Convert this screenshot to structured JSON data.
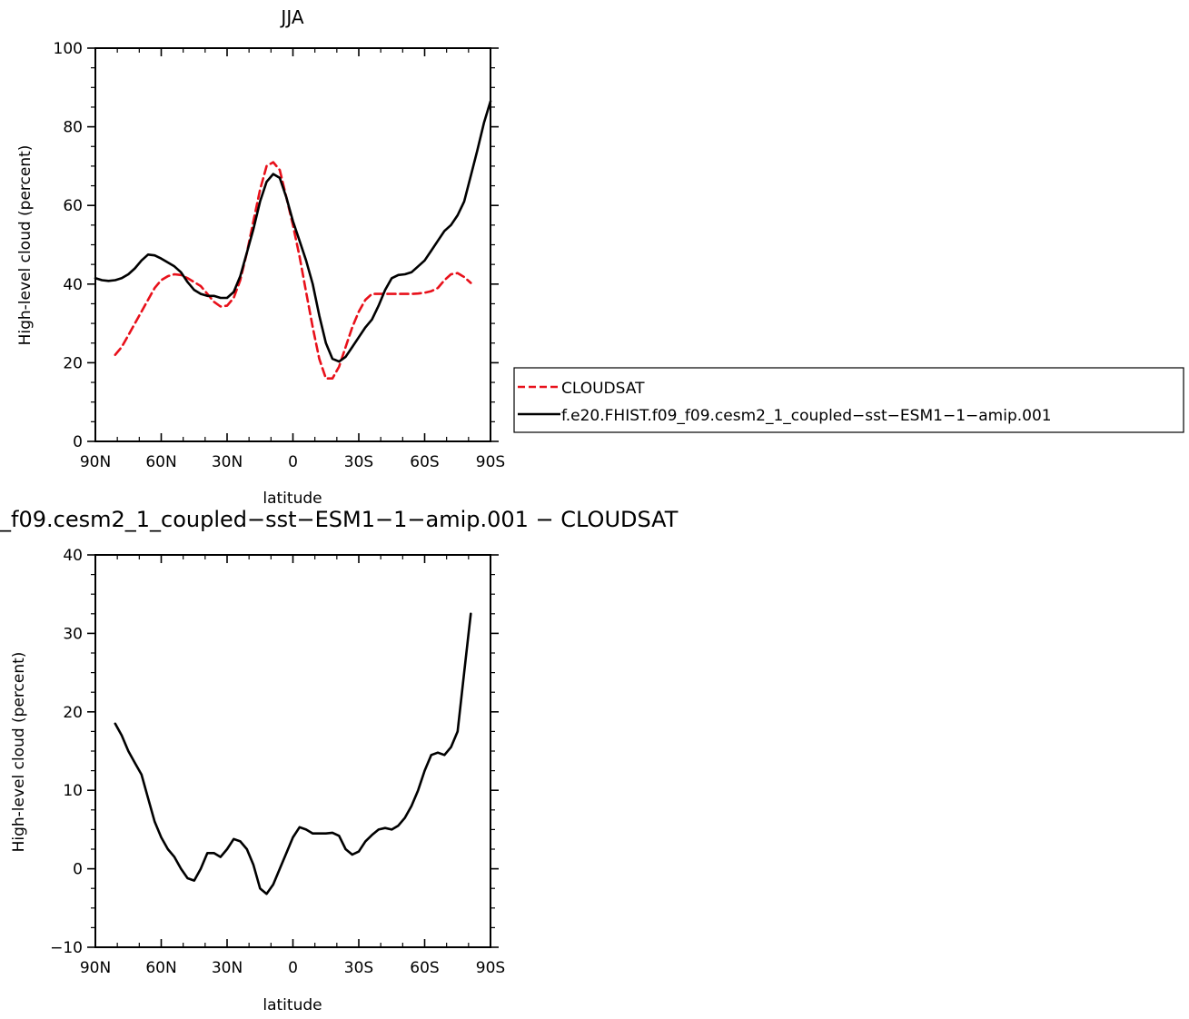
{
  "top_title": "JJA",
  "bottom_title": "_f09.cesm2_1_coupled−sst−ESM1−1−amip.001  −  CLOUDSAT",
  "legend": {
    "cloudsat_label": "CLOUDSAT",
    "model_label": "f.e20.FHIST.f09_f09.cesm2_1_coupled−sst−ESM1−1−amip.001"
  },
  "colors": {
    "cloudsat": "#e8101a",
    "model": "#000000"
  },
  "chart_data": [
    {
      "type": "line",
      "title": "JJA",
      "xlabel": "latitude",
      "ylabel": "High-level cloud (percent)",
      "xlim": [
        90,
        -90
      ],
      "ylim": [
        0,
        100
      ],
      "x_tick_values": [
        90,
        60,
        30,
        0,
        -30,
        -60,
        -90
      ],
      "x_tick_labels": [
        "90N",
        "60N",
        "30N",
        "0",
        "30S",
        "60S",
        "90S"
      ],
      "y_tick_values": [
        0,
        20,
        40,
        60,
        80,
        100
      ],
      "y_tick_labels": [
        "0",
        "20",
        "40",
        "60",
        "80",
        "100"
      ],
      "legend_position": "right",
      "series": [
        {
          "name": "CLOUDSAT",
          "style": "dashed",
          "color": "#e8101a",
          "x": [
            81,
            78,
            75,
            72,
            69,
            66,
            63,
            60,
            57,
            54,
            51,
            48,
            45,
            42,
            39,
            36,
            33,
            30,
            27,
            24,
            21,
            18,
            15,
            12,
            9,
            6,
            3,
            0,
            -3,
            -6,
            -9,
            -12,
            -15,
            -18,
            -21,
            -24,
            -27,
            -30,
            -33,
            -36,
            -39,
            -42,
            -45,
            -48,
            -51,
            -54,
            -57,
            -60,
            -63,
            -66,
            -69,
            -72,
            -75,
            -78,
            -81
          ],
          "values": [
            22,
            24,
            27,
            30,
            33,
            36,
            39,
            41,
            42,
            42.5,
            42.3,
            41.5,
            40.5,
            39.5,
            37.5,
            35.5,
            34.3,
            34.5,
            36.5,
            41,
            48,
            56,
            64,
            70,
            71,
            69,
            62,
            55,
            47,
            38,
            29,
            21,
            16,
            16,
            19,
            24,
            29,
            33,
            36,
            37.5,
            37.5,
            37.5,
            37.5,
            37.5,
            37.5,
            37.5,
            37.6,
            37.8,
            38.2,
            39,
            41,
            42.5,
            42.8,
            41.8,
            40.3
          ]
        },
        {
          "name": "f.e20.FHIST.f09_f09.cesm2_1_coupled−sst−ESM1−1−amip.001",
          "style": "solid",
          "color": "#000000",
          "x": [
            90,
            87,
            84,
            81,
            78,
            75,
            72,
            69,
            66,
            63,
            60,
            57,
            54,
            51,
            48,
            45,
            42,
            39,
            36,
            33,
            30,
            27,
            24,
            21,
            18,
            15,
            12,
            9,
            6,
            3,
            0,
            -3,
            -6,
            -9,
            -12,
            -15,
            -18,
            -21,
            -24,
            -27,
            -30,
            -33,
            -36,
            -39,
            -42,
            -45,
            -48,
            -51,
            -54,
            -57,
            -60,
            -63,
            -66,
            -69,
            -72,
            -75,
            -78,
            -81,
            -84,
            -87,
            -90
          ],
          "values": [
            41.5,
            41,
            40.8,
            41,
            41.5,
            42.5,
            44,
            46,
            47.5,
            47.3,
            46.5,
            45.5,
            44.5,
            43,
            40.5,
            38.5,
            37.5,
            37,
            37,
            36.5,
            36.5,
            38,
            42,
            48,
            54,
            61,
            66,
            68,
            67,
            62,
            56,
            51,
            46,
            40,
            32,
            25,
            21,
            20.3,
            21.5,
            24,
            26.5,
            29,
            31,
            34.5,
            38.5,
            41.5,
            42.3,
            42.5,
            43,
            44.5,
            46,
            48.5,
            51,
            53.5,
            55,
            57.5,
            61,
            67.5,
            74,
            81,
            86.5
          ]
        }
      ]
    },
    {
      "type": "line",
      "title": "_f09.cesm2_1_coupled−sst−ESM1−1−amip.001  −  CLOUDSAT",
      "xlabel": "latitude",
      "ylabel": "High-level cloud (percent)",
      "xlim": [
        90,
        -90
      ],
      "ylim": [
        -10,
        40
      ],
      "x_tick_values": [
        90,
        60,
        30,
        0,
        -30,
        -60,
        -90
      ],
      "x_tick_labels": [
        "90N",
        "60N",
        "30N",
        "0",
        "30S",
        "60S",
        "90S"
      ],
      "y_tick_values": [
        -10,
        0,
        10,
        20,
        30,
        40
      ],
      "y_tick_labels": [
        "−10",
        "0",
        "10",
        "20",
        "30",
        "40"
      ],
      "series": [
        {
          "style": "solid",
          "color": "#000000",
          "x": [
            81,
            78,
            75,
            72,
            69,
            66,
            63,
            60,
            57,
            54,
            51,
            48,
            45,
            42,
            39,
            36,
            33,
            30,
            27,
            24,
            21,
            18,
            15,
            12,
            9,
            6,
            3,
            0,
            -3,
            -6,
            -9,
            -12,
            -15,
            -18,
            -21,
            -24,
            -27,
            -30,
            -33,
            -36,
            -39,
            -42,
            -45,
            -48,
            -51,
            -54,
            -57,
            -60,
            -63,
            -66,
            -69,
            -72,
            -75,
            -78,
            -81
          ],
          "values": [
            18.5,
            17,
            15,
            13.5,
            12,
            9,
            6,
            4,
            2.5,
            1.5,
            0,
            -1.2,
            -1.5,
            0,
            2,
            2,
            1.5,
            2.5,
            3.8,
            3.5,
            2.5,
            0.5,
            -2.5,
            -3.2,
            -2,
            0,
            2,
            4,
            5.3,
            5,
            4.5,
            4.5,
            4.5,
            4.6,
            4.2,
            2.5,
            1.8,
            2.2,
            3.5,
            4.3,
            5,
            5.2,
            5,
            5.5,
            6.5,
            8,
            10,
            12.5,
            14.5,
            14.8,
            14.5,
            15.5,
            17.5,
            25,
            32.5
          ]
        }
      ]
    }
  ]
}
